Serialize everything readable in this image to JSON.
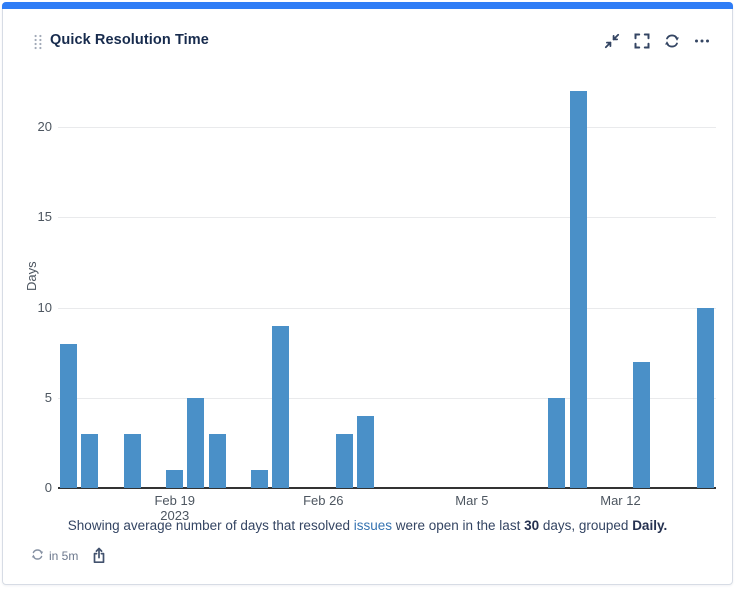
{
  "header": {
    "title": "Quick Resolution Time",
    "icons": [
      "drag-handle-icon",
      "minimize-icon",
      "fullscreen-icon",
      "refresh-icon",
      "more-options-icon"
    ]
  },
  "colors": {
    "accent_bar": "#2f7df6",
    "bar_fill": "#4a90c8",
    "link": "#3573b1",
    "title_text": "#172b4d"
  },
  "chart_data": {
    "type": "bar",
    "title": "Quick Resolution Time",
    "ylabel": "Days",
    "xlabel": "",
    "ylim": [
      0,
      22.5
    ],
    "y_ticks": [
      0,
      5,
      10,
      15,
      20
    ],
    "grid": true,
    "legend": false,
    "bar_color": "#4a90c8",
    "x_slots": 31,
    "x_range": [
      "Feb 14 2023",
      "Mar 16 2023"
    ],
    "grouping": "Daily",
    "points": [
      {
        "date": "Feb 14",
        "day_index": 0,
        "value": 8
      },
      {
        "date": "Feb 15",
        "day_index": 1,
        "value": 3
      },
      {
        "date": "Feb 17",
        "day_index": 3,
        "value": 3
      },
      {
        "date": "Feb 19",
        "day_index": 5,
        "value": 1
      },
      {
        "date": "Feb 20",
        "day_index": 6,
        "value": 5
      },
      {
        "date": "Feb 21",
        "day_index": 7,
        "value": 3
      },
      {
        "date": "Feb 23",
        "day_index": 9,
        "value": 1
      },
      {
        "date": "Feb 24",
        "day_index": 10,
        "value": 9
      },
      {
        "date": "Feb 27",
        "day_index": 13,
        "value": 3
      },
      {
        "date": "Feb 28",
        "day_index": 14,
        "value": 4
      },
      {
        "date": "Mar 9",
        "day_index": 23,
        "value": 5
      },
      {
        "date": "Mar 10",
        "day_index": 24,
        "value": 22
      },
      {
        "date": "Mar 13",
        "day_index": 27,
        "value": 7
      },
      {
        "date": "Mar 16",
        "day_index": 30,
        "value": 10
      }
    ],
    "x_ticks": [
      {
        "label": "Feb 19",
        "sublabel": "2023",
        "day_index": 5
      },
      {
        "label": "Feb 26",
        "day_index": 12
      },
      {
        "label": "Mar 5",
        "day_index": 19
      },
      {
        "label": "Mar 12",
        "day_index": 26
      }
    ]
  },
  "footnote": {
    "part1": "Showing average number of days that resolved ",
    "link_text": "issues",
    "part2": " were open in the last ",
    "bold_days": "30",
    "part3": " days, grouped ",
    "bold_grouping": "Daily."
  },
  "statusbar": {
    "refresh_in": "in 5m"
  }
}
